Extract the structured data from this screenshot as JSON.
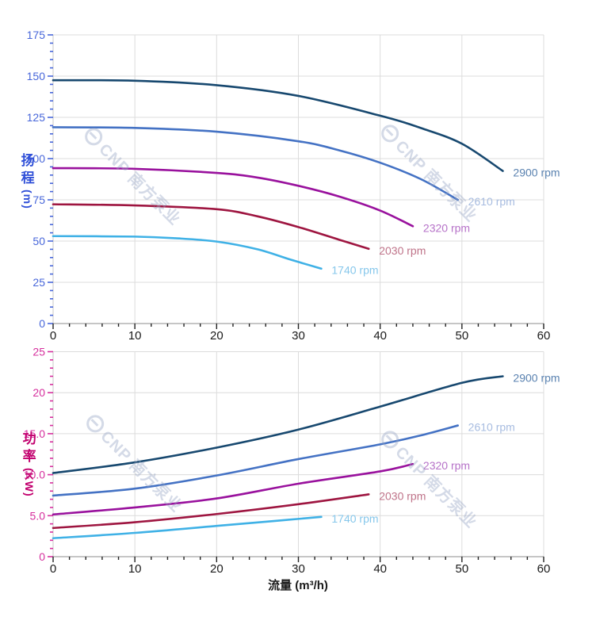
{
  "axis_titles": {
    "head_y": {
      "line1": "扬",
      "line2": "程",
      "unit": "(m)",
      "color": "#3050d8"
    },
    "power_y": {
      "line1": "功",
      "line2": "率",
      "unit": "(KW)",
      "color": "#c2006e"
    },
    "x": {
      "label": "流量 (m³/h)",
      "color": "#1a1a1a"
    }
  },
  "watermark": {
    "text": "CNP 南方泵业",
    "color": "rgba(148,162,196,0.40)"
  },
  "chart_data": [
    {
      "id": "head",
      "type": "line",
      "title": "",
      "xlabel": "流量 (m³/h)",
      "ylabel": "扬程 (m)",
      "xlim": [
        0,
        60
      ],
      "ylim": [
        0,
        175
      ],
      "x_major": 10,
      "x_minor": 2,
      "y_major": 25,
      "y_minor": 5,
      "grid": true,
      "x_tick_labels": [
        "0",
        "10",
        "20",
        "30",
        "40",
        "50",
        "60"
      ],
      "y_tick_labels": [
        "0",
        "25",
        "50",
        "75",
        "100",
        "125",
        "150",
        "175"
      ],
      "style": {
        "grid": "#dcdcdc",
        "y_axis_line": "#c8c8c8",
        "x_axis_line": "#8c8c8c",
        "y_tick": "#4867da",
        "y_label": "#4867da",
        "x_tick": "#222222",
        "x_label": "#1a1a1a"
      },
      "series": [
        {
          "name": "2900 rpm",
          "color": "#17486f",
          "label_color": "#5a82b0",
          "points": [
            [
              0,
              147.5
            ],
            [
              10,
              147.2
            ],
            [
              20,
              144.5
            ],
            [
              30,
              138
            ],
            [
              40,
              126
            ],
            [
              45,
              118.5
            ],
            [
              50,
              109
            ],
            [
              55,
              92.5
            ]
          ]
        },
        {
          "name": "2610 rpm",
          "color": "#4472c4",
          "label_color": "#a7bce0",
          "points": [
            [
              0,
              119
            ],
            [
              10,
              118.6
            ],
            [
              20,
              116.3
            ],
            [
              30,
              110.5
            ],
            [
              35,
              105
            ],
            [
              40,
              97.5
            ],
            [
              45,
              87.5
            ],
            [
              49.5,
              75
            ]
          ]
        },
        {
          "name": "2320 rpm",
          "color": "#99119d",
          "label_color": "#b672c8",
          "points": [
            [
              0,
              94.2
            ],
            [
              10,
              93.8
            ],
            [
              20,
              91.3
            ],
            [
              25,
              88.5
            ],
            [
              30,
              83.5
            ],
            [
              35,
              77
            ],
            [
              40,
              68.5
            ],
            [
              44,
              59
            ]
          ]
        },
        {
          "name": "2030 rpm",
          "color": "#9e1540",
          "label_color": "#bf7389",
          "points": [
            [
              0,
              72.3
            ],
            [
              10,
              71.6
            ],
            [
              20,
              69.3
            ],
            [
              25,
              65
            ],
            [
              30,
              58.5
            ],
            [
              35,
              50.8
            ],
            [
              38.6,
              45.3
            ]
          ]
        },
        {
          "name": "1740 rpm",
          "color": "#3fb1e6",
          "label_color": "#86c7eb",
          "points": [
            [
              0,
              53
            ],
            [
              10,
              52.7
            ],
            [
              15,
              51.7
            ],
            [
              20,
              49.7
            ],
            [
              25,
              45
            ],
            [
              29,
              38.8
            ],
            [
              32.8,
              33.3
            ]
          ]
        }
      ]
    },
    {
      "id": "power",
      "type": "line",
      "title": "",
      "xlabel": "流量 (m³/h)",
      "ylabel": "功率 (KW)",
      "xlim": [
        0,
        60
      ],
      "ylim": [
        0,
        25
      ],
      "x_major": 10,
      "x_minor": 2,
      "y_major": 5,
      "y_minor": 1,
      "grid": true,
      "x_tick_labels": [
        "0",
        "10",
        "20",
        "30",
        "40",
        "50",
        "60"
      ],
      "y_tick_labels": [
        "0",
        "5.0",
        "10.0",
        "15.0",
        "20",
        "25"
      ],
      "style": {
        "grid": "#dcdcdc",
        "y_axis_line": "#c8c8c8",
        "x_axis_line": "#8c8c8c",
        "y_tick": "#d6309e",
        "y_label": "#d6309e",
        "x_tick": "#222222",
        "x_label": "#1a1a1a"
      },
      "series": [
        {
          "name": "2900 rpm",
          "color": "#17486f",
          "label_color": "#5a82b0",
          "points": [
            [
              0,
              10.2
            ],
            [
              10,
              11.5
            ],
            [
              20,
              13.3
            ],
            [
              30,
              15.5
            ],
            [
              40,
              18.3
            ],
            [
              50,
              21.2
            ],
            [
              55,
              22
            ]
          ]
        },
        {
          "name": "2610 rpm",
          "color": "#4472c4",
          "label_color": "#a7bce0",
          "points": [
            [
              0,
              7.45
            ],
            [
              10,
              8.3
            ],
            [
              20,
              9.9
            ],
            [
              30,
              11.9
            ],
            [
              40,
              13.7
            ],
            [
              45,
              14.8
            ],
            [
              49.5,
              16
            ]
          ]
        },
        {
          "name": "2320 rpm",
          "color": "#99119d",
          "label_color": "#b672c8",
          "points": [
            [
              0,
              5.15
            ],
            [
              10,
              6
            ],
            [
              20,
              7.1
            ],
            [
              30,
              8.9
            ],
            [
              40,
              10.4
            ],
            [
              44,
              11.3
            ]
          ]
        },
        {
          "name": "2030 rpm",
          "color": "#9e1540",
          "label_color": "#bf7389",
          "points": [
            [
              0,
              3.5
            ],
            [
              10,
              4.2
            ],
            [
              20,
              5.2
            ],
            [
              30,
              6.4
            ],
            [
              38.6,
              7.6
            ]
          ]
        },
        {
          "name": "1740 rpm",
          "color": "#3fb1e6",
          "label_color": "#86c7eb",
          "points": [
            [
              0,
              2.25
            ],
            [
              10,
              2.9
            ],
            [
              20,
              3.75
            ],
            [
              27,
              4.35
            ],
            [
              32.8,
              4.85
            ]
          ]
        }
      ]
    }
  ]
}
